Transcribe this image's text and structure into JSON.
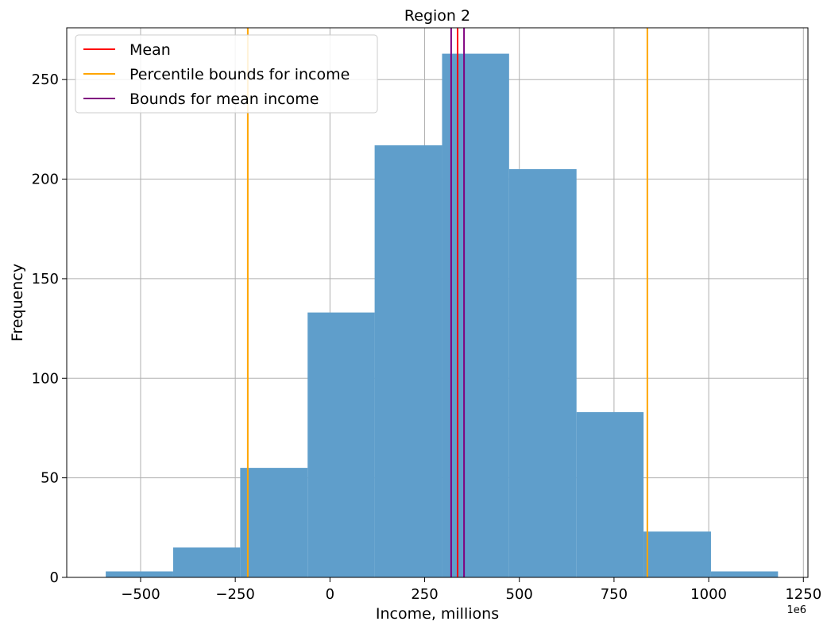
{
  "chart_data": {
    "type": "bar",
    "title": "Region 2",
    "xlabel": "Income, millions",
    "ylabel": "Frequency",
    "x_offset_label": "1e6",
    "xlim": [
      -695,
      1262
    ],
    "ylim": [
      0,
      276
    ],
    "grid": true,
    "legend_position": "top-left",
    "bar_color": "#5f9ecb",
    "bins": [
      {
        "x0": -592,
        "x1": -414,
        "value": 3
      },
      {
        "x0": -414,
        "x1": -237,
        "value": 15
      },
      {
        "x0": -237,
        "x1": -59,
        "value": 55
      },
      {
        "x0": -59,
        "x1": 118,
        "value": 133
      },
      {
        "x0": 118,
        "x1": 296,
        "value": 217
      },
      {
        "x0": 296,
        "x1": 473,
        "value": 263
      },
      {
        "x0": 473,
        "x1": 651,
        "value": 205
      },
      {
        "x0": 651,
        "x1": 828,
        "value": 83
      },
      {
        "x0": 828,
        "x1": 1006,
        "value": 23
      },
      {
        "x0": 1006,
        "x1": 1183,
        "value": 3
      }
    ],
    "x_ticks": [
      -500,
      -250,
      0,
      250,
      500,
      750,
      1000,
      1250
    ],
    "x_tick_labels": [
      "−500",
      "−250",
      "0",
      "250",
      "500",
      "750",
      "1000",
      "1250"
    ],
    "y_ticks": [
      0,
      50,
      100,
      150,
      200,
      250
    ],
    "y_tick_labels": [
      "0",
      "50",
      "100",
      "150",
      "200",
      "250"
    ],
    "vlines": [
      {
        "series": "Mean",
        "x": 337,
        "color": "#ff0000"
      },
      {
        "series": "Percentile bounds for income",
        "x": -217,
        "color": "#ffa500"
      },
      {
        "series": "Percentile bounds for income",
        "x": 838,
        "color": "#ffa500"
      },
      {
        "series": "Bounds for mean income",
        "x": 320,
        "color": "#800080"
      },
      {
        "series": "Bounds for mean income",
        "x": 354,
        "color": "#800080"
      }
    ],
    "legend": [
      {
        "label": "Mean",
        "color": "#ff0000"
      },
      {
        "label": "Percentile bounds for income",
        "color": "#ffa500"
      },
      {
        "label": "Bounds for mean income",
        "color": "#800080"
      }
    ]
  }
}
